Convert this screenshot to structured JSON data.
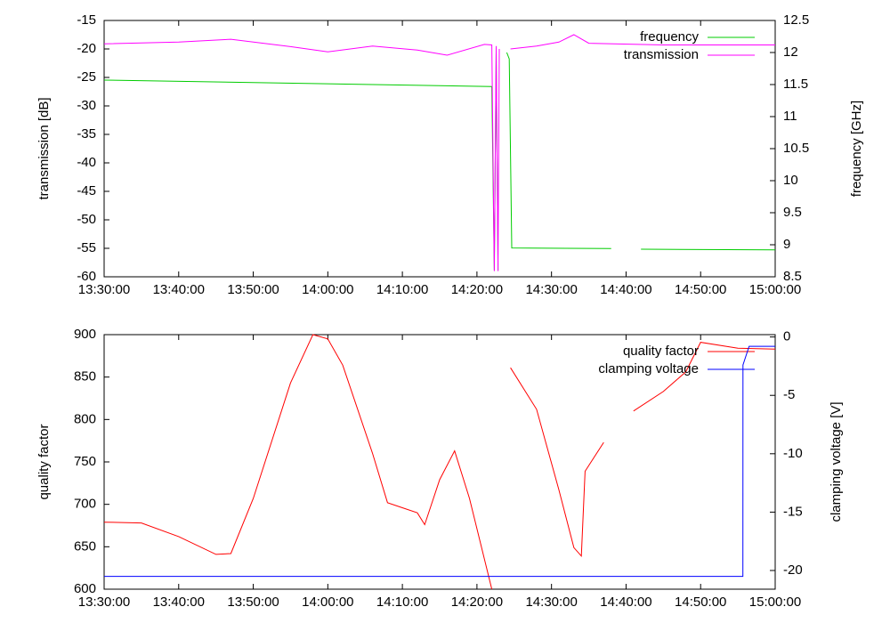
{
  "chart_data": [
    {
      "type": "line",
      "ylabel": "transmission [dB]",
      "y2label": "frequency [GHz]",
      "xlim": [
        "13:30:00",
        "15:00:00"
      ],
      "xticks": [
        "13:30:00",
        "13:40:00",
        "13:50:00",
        "14:00:00",
        "14:10:00",
        "14:20:00",
        "14:30:00",
        "14:40:00",
        "14:50:00",
        "15:00:00"
      ],
      "ylim": [
        -60,
        -15
      ],
      "yticks": [
        -60,
        -55,
        -50,
        -45,
        -40,
        -35,
        -30,
        -25,
        -20,
        -15
      ],
      "y2lim": [
        8.5,
        12.5
      ],
      "y2ticks": [
        8.5,
        9,
        9.5,
        10,
        10.5,
        11,
        11.5,
        12,
        12.5
      ],
      "legend": "upper right",
      "series": [
        {
          "name": "frequency",
          "color": "#00cc00",
          "axis": "y2",
          "x": [
            "13:30:00",
            "14:22:00",
            "14:22:20",
            "14:22:35",
            "14:22:50",
            "14:23:30",
            "14:24:00",
            "14:24:20",
            "14:24:40",
            "14:38:00",
            "14:40:00",
            "14:42:00",
            "15:00:00"
          ],
          "values": [
            11.57,
            11.47,
            8.6,
            12.0,
            8.6,
            null,
            12.0,
            11.9,
            8.95,
            8.94,
            null,
            8.93,
            8.92
          ]
        },
        {
          "name": "transmission",
          "color": "#ff00ff",
          "x": [
            "13:30:00",
            "13:40:00",
            "13:47:00",
            "13:55:00",
            "14:00:00",
            "14:06:00",
            "14:12:00",
            "14:16:00",
            "14:21:00",
            "14:22:00",
            "14:22:20",
            "14:22:35",
            "14:22:50",
            "14:23:00",
            "14:23:30",
            "14:24:30",
            "14:28:00",
            "14:31:00",
            "14:33:00",
            "14:35:00",
            "14:45:00",
            "15:00:00"
          ],
          "values": [
            -19.1,
            -18.8,
            -18.3,
            -19.6,
            -20.5,
            -19.5,
            -20.2,
            -21.1,
            -19.2,
            -19.3,
            -59,
            -19.5,
            -59,
            -20,
            null,
            -20,
            -19.5,
            -18.8,
            -17.5,
            -19,
            -19.3,
            -19.3
          ]
        }
      ]
    },
    {
      "type": "line",
      "ylabel": "quality factor",
      "y2label": "clamping voltage [V]",
      "xlim": [
        "13:30:00",
        "15:00:00"
      ],
      "xticks": [
        "13:30:00",
        "13:40:00",
        "13:50:00",
        "14:00:00",
        "14:10:00",
        "14:20:00",
        "14:30:00",
        "14:40:00",
        "14:50:00",
        "15:00:00"
      ],
      "ylim": [
        600,
        900
      ],
      "yticks": [
        600,
        650,
        700,
        750,
        800,
        850,
        900
      ],
      "y2lim": [
        -21.6,
        0.2
      ],
      "y2ticks": [
        -20,
        -15,
        -10,
        -5,
        0
      ],
      "legend": "upper right",
      "series": [
        {
          "name": "quality factor",
          "color": "#ff0000",
          "x": [
            "13:30:00",
            "13:35:00",
            "13:40:00",
            "13:45:00",
            "13:47:00",
            "13:50:00",
            "13:55:00",
            "13:58:00",
            "14:00:00",
            "14:02:00",
            "14:06:00",
            "14:08:00",
            "14:10:00",
            "14:12:00",
            "14:13:00",
            "14:15:00",
            "14:17:00",
            "14:19:00",
            "14:22:00",
            "14:23:00",
            "14:24:30",
            "14:28:00",
            "14:31:00",
            "14:33:00",
            "14:34:00",
            "14:34:30",
            "14:37:00",
            "14:39:00",
            "14:41:00",
            "14:45:00",
            "14:48:00",
            "14:50:00",
            "14:55:00",
            "15:00:00"
          ],
          "values": [
            679,
            678,
            662,
            641,
            642,
            707,
            843,
            900,
            895,
            864,
            760,
            702,
            696,
            690,
            676,
            729,
            763,
            707,
            600,
            null,
            861,
            812,
            717,
            649,
            639,
            739,
            773,
            null,
            810,
            833,
            856,
            891,
            884,
            883
          ]
        },
        {
          "name": "clamping voltage",
          "color": "#0000ff",
          "axis": "y2",
          "x": [
            "13:30:00",
            "14:55:40",
            "14:55:41",
            "14:56:30",
            "15:00:00"
          ],
          "values": [
            -20.5,
            -20.5,
            -2.4,
            -0.8,
            -0.8
          ]
        }
      ]
    }
  ]
}
